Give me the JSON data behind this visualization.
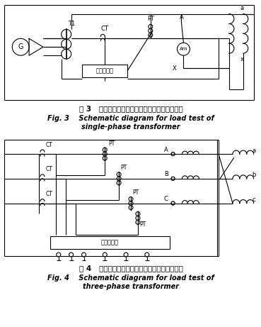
{
  "fig3_title_cn": "图 3   单相变压器短路阻抗和负载损耗测量原理图",
  "fig3_title_en1": "Fig. 3    Schematic diagram for load test of",
  "fig3_title_en2": "single-phase transformer",
  "fig4_title_cn": "图 4   三相变压器短路阻抗和负载损耗测量原理图",
  "fig4_title_en1": "Fig. 4    Schematic diagram for load test of",
  "fig4_title_en2": "three-phase transformer",
  "bg_color": "#ffffff"
}
